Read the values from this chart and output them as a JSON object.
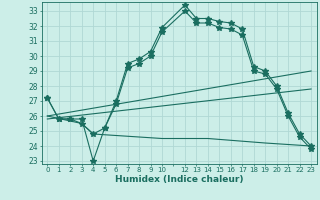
{
  "xlabel": "Humidex (Indice chaleur)",
  "bg_color": "#cceee8",
  "grid_color": "#b0d8d4",
  "line_color": "#1a6e60",
  "ylim": [
    22.8,
    33.6
  ],
  "xlim": [
    -0.5,
    23.5
  ],
  "yticks": [
    23,
    24,
    25,
    26,
    27,
    28,
    29,
    30,
    31,
    32,
    33
  ],
  "xtick_labels": [
    "0",
    "1",
    "2",
    "3",
    "4",
    "5",
    "6",
    "7",
    "8",
    "9",
    "10",
    "",
    "12",
    "13",
    "14",
    "15",
    "16",
    "17",
    "18",
    "19",
    "20",
    "21",
    "22",
    "23"
  ],
  "curves": [
    {
      "x": [
        0,
        1,
        2,
        3,
        4,
        5,
        6,
        7,
        8,
        9,
        10,
        12,
        13,
        14,
        15,
        16,
        17,
        18,
        19,
        20,
        21,
        22,
        23
      ],
      "y": [
        27.2,
        25.8,
        25.8,
        25.8,
        23.0,
        25.2,
        27.0,
        29.5,
        29.8,
        30.3,
        31.9,
        33.4,
        32.5,
        32.5,
        32.3,
        32.2,
        31.8,
        29.3,
        29.0,
        28.0,
        26.2,
        24.8,
        24.0
      ],
      "marker": "*",
      "markersize": 4
    },
    {
      "x": [
        0,
        1,
        2,
        3,
        4,
        5,
        6,
        7,
        8,
        9,
        10,
        12,
        13,
        14,
        15,
        16,
        17,
        18,
        19,
        20,
        21,
        22,
        23
      ],
      "y": [
        27.2,
        25.8,
        25.8,
        25.5,
        24.8,
        25.2,
        26.8,
        29.2,
        29.5,
        30.0,
        31.6,
        33.0,
        32.2,
        32.2,
        31.9,
        31.8,
        31.4,
        29.0,
        28.8,
        27.8,
        26.0,
        24.6,
        23.8
      ],
      "marker": "*",
      "markersize": 4
    },
    {
      "x": [
        0,
        23
      ],
      "y": [
        26.0,
        29.0
      ],
      "marker": null,
      "markersize": 0
    },
    {
      "x": [
        0,
        23
      ],
      "y": [
        25.8,
        27.8
      ],
      "marker": null,
      "markersize": 0
    },
    {
      "x": [
        0,
        3,
        4,
        10,
        14,
        19,
        23
      ],
      "y": [
        26.0,
        25.5,
        24.8,
        24.5,
        24.5,
        24.2,
        24.0
      ],
      "marker": null,
      "markersize": 0
    }
  ]
}
